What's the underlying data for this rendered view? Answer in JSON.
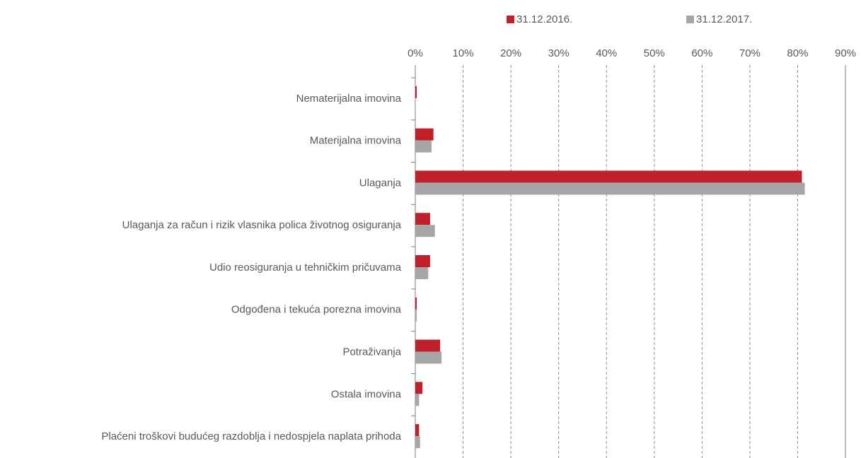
{
  "chart_data": {
    "type": "hbar",
    "categories": [
      "Nematerijalna imovina",
      "Materijalna imovina",
      "Ulaganja",
      "Ulaganja za račun i rizik vlasnika polica životnog osiguranja",
      "Udio reosiguranja u tehničkim pričuvama",
      "Odgođena i tekuća porezna imovina",
      "Potraživanja",
      "Ostala imovina",
      "Plaćeni troškovi budućeg razdoblja i nedospjela naplata prihoda"
    ],
    "series": [
      {
        "name": "31.12.2016.",
        "color": "#c0202a",
        "values": [
          0.3,
          3.8,
          80.9,
          3.1,
          3.1,
          0.3,
          5.2,
          1.5,
          0.8
        ]
      },
      {
        "name": "31.12.2017.",
        "color": "#a6a6a6",
        "values": [
          0.1,
          3.4,
          81.5,
          4.1,
          2.7,
          0.3,
          5.5,
          0.8,
          1.0
        ]
      }
    ],
    "xlim": [
      0,
      90
    ],
    "xticks": [
      {
        "value": 0,
        "label": "0%"
      },
      {
        "value": 10,
        "label": "10%"
      },
      {
        "value": 20,
        "label": "20%"
      },
      {
        "value": 30,
        "label": "30%"
      },
      {
        "value": 40,
        "label": "40%"
      },
      {
        "value": 50,
        "label": "50%"
      },
      {
        "value": 60,
        "label": "60%"
      },
      {
        "value": 70,
        "label": "70%"
      },
      {
        "value": 80,
        "label": "80%"
      },
      {
        "value": 90,
        "label": "90%"
      }
    ],
    "grid": true,
    "legend": "top"
  }
}
